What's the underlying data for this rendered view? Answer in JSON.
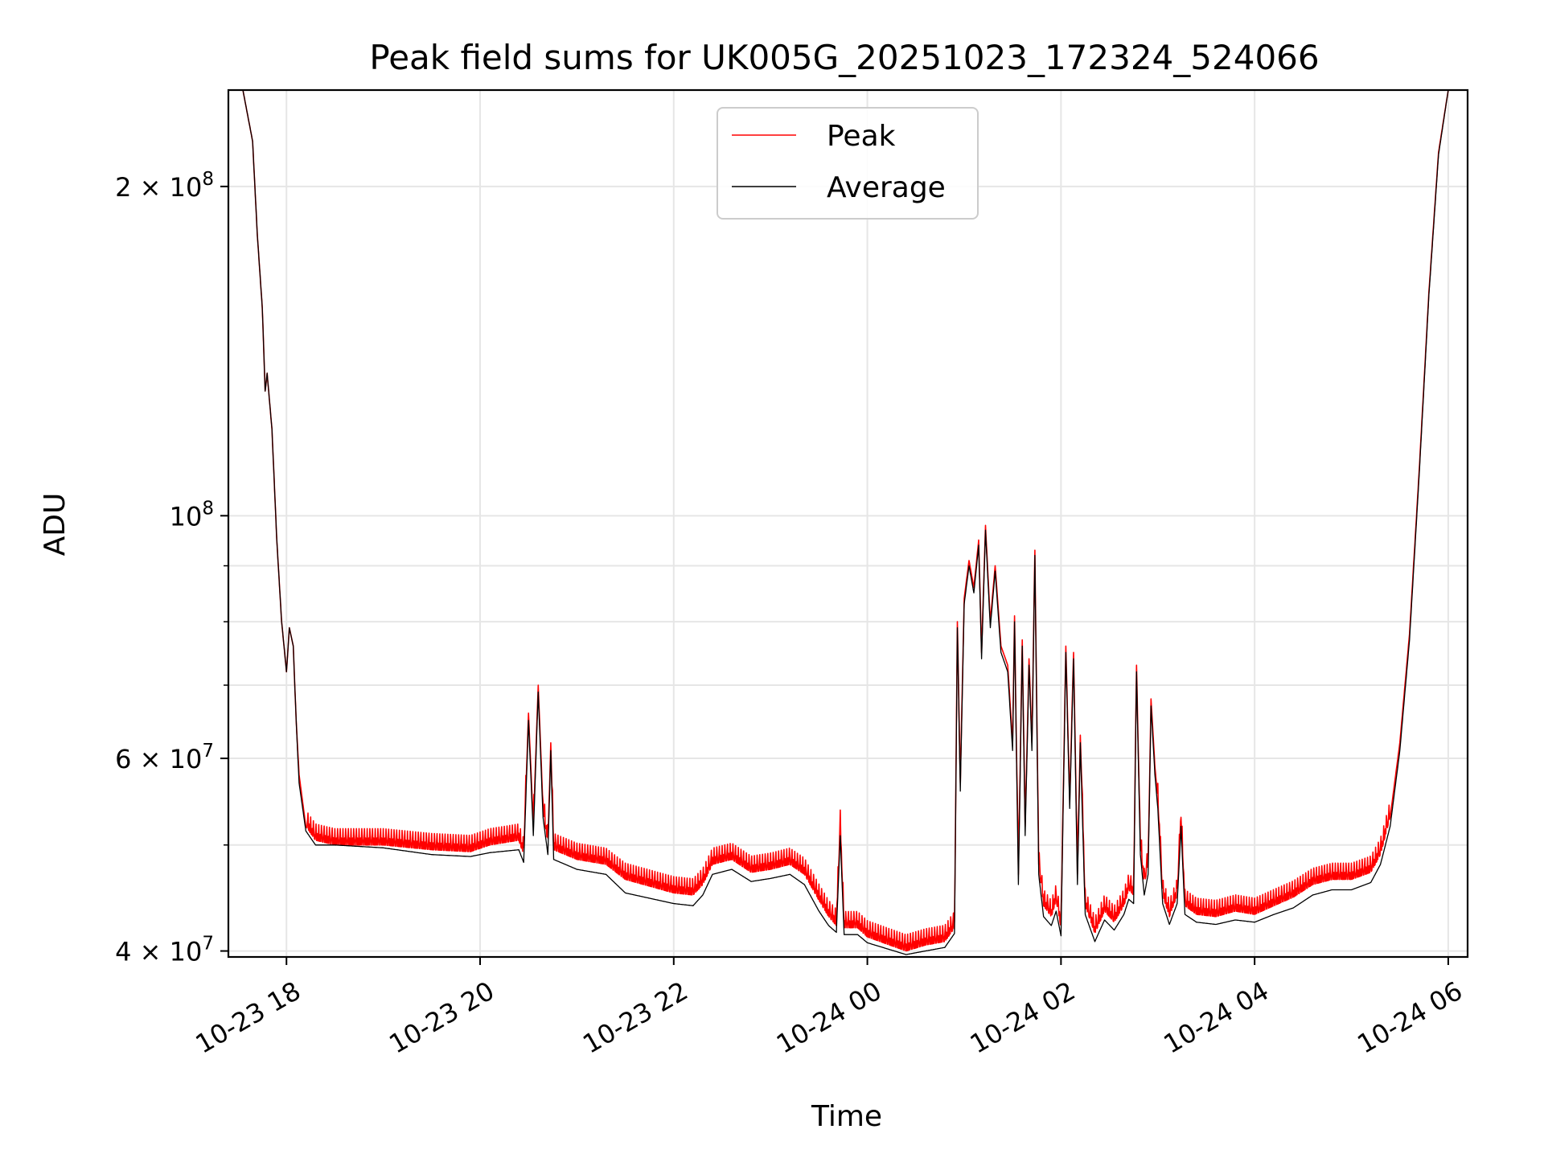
{
  "chart_data": {
    "type": "line",
    "title": "Peak field sums for UK005G_20251023_172324_524066",
    "xlabel": "Time",
    "ylabel": "ADU",
    "yscale": "log",
    "ylim": [
      39500000,
      245000000
    ],
    "xlim_hours": [
      -0.6,
      12.2
    ],
    "grid": true,
    "legend_position": "upper center",
    "x_ticks": [
      {
        "hour": 0,
        "label": "10-23 18"
      },
      {
        "hour": 2,
        "label": "10-23 20"
      },
      {
        "hour": 4,
        "label": "10-23 22"
      },
      {
        "hour": 6,
        "label": "10-24 00"
      },
      {
        "hour": 8,
        "label": "10-24 02"
      },
      {
        "hour": 10,
        "label": "10-24 04"
      },
      {
        "hour": 12,
        "label": "10-24 06"
      }
    ],
    "y_major_ticks": [
      {
        "value": 40000000,
        "mantissa": "4",
        "exponent": "7"
      },
      {
        "value": 60000000,
        "mantissa": "6",
        "exponent": "7"
      },
      {
        "value": 100000000,
        "mantissa": "",
        "exponent": "8"
      },
      {
        "value": 200000000,
        "mantissa": "2",
        "exponent": "8"
      }
    ],
    "y_minor_ticks": [
      50000000,
      70000000,
      80000000,
      90000000
    ],
    "series": [
      {
        "name": "Peak",
        "color": "#ff0000",
        "noise": "ripple",
        "values": [
          [
            -0.6,
            245000000
          ],
          [
            -0.45,
            245000000
          ],
          [
            -0.35,
            220000000
          ],
          [
            -0.3,
            180000000
          ],
          [
            -0.25,
            155000000
          ],
          [
            -0.22,
            130000000
          ],
          [
            -0.2,
            135000000
          ],
          [
            -0.15,
            120000000
          ],
          [
            -0.1,
            95000000
          ],
          [
            -0.05,
            80000000
          ],
          [
            0.0,
            72000000
          ],
          [
            0.03,
            79000000
          ],
          [
            0.07,
            76000000
          ],
          [
            0.1,
            65000000
          ],
          [
            0.13,
            58000000
          ],
          [
            0.2,
            52000000
          ],
          [
            0.3,
            50500000
          ],
          [
            0.5,
            50000000
          ],
          [
            1.0,
            50000000
          ],
          [
            1.5,
            49500000
          ],
          [
            1.9,
            49300000
          ],
          [
            2.1,
            50000000
          ],
          [
            2.4,
            50500000
          ],
          [
            2.45,
            49000000
          ],
          [
            2.5,
            66000000
          ],
          [
            2.55,
            52000000
          ],
          [
            2.6,
            70000000
          ],
          [
            2.65,
            54000000
          ],
          [
            2.7,
            50000000
          ],
          [
            2.73,
            62000000
          ],
          [
            2.76,
            49500000
          ],
          [
            3.0,
            48500000
          ],
          [
            3.3,
            48000000
          ],
          [
            3.5,
            46500000
          ],
          [
            4.0,
            45200000
          ],
          [
            4.2,
            45000000
          ],
          [
            4.3,
            46000000
          ],
          [
            4.4,
            48000000
          ],
          [
            4.6,
            48500000
          ],
          [
            4.8,
            47200000
          ],
          [
            5.0,
            47500000
          ],
          [
            5.2,
            48000000
          ],
          [
            5.35,
            47000000
          ],
          [
            5.5,
            44500000
          ],
          [
            5.6,
            43000000
          ],
          [
            5.68,
            42200000
          ],
          [
            5.72,
            52000000
          ],
          [
            5.76,
            42000000
          ],
          [
            5.9,
            42000000
          ],
          [
            6.0,
            41200000
          ],
          [
            6.4,
            40000000
          ],
          [
            6.6,
            40500000
          ],
          [
            6.8,
            40800000
          ],
          [
            6.9,
            42000000
          ],
          [
            6.93,
            80000000
          ],
          [
            6.96,
            57000000
          ],
          [
            7.0,
            84000000
          ],
          [
            7.05,
            91000000
          ],
          [
            7.1,
            86000000
          ],
          [
            7.15,
            95000000
          ],
          [
            7.18,
            75000000
          ],
          [
            7.22,
            98000000
          ],
          [
            7.27,
            80000000
          ],
          [
            7.32,
            90000000
          ],
          [
            7.38,
            76000000
          ],
          [
            7.45,
            73000000
          ],
          [
            7.5,
            62000000
          ],
          [
            7.52,
            81000000
          ],
          [
            7.56,
            47000000
          ],
          [
            7.6,
            77000000
          ],
          [
            7.63,
            52000000
          ],
          [
            7.67,
            74000000
          ],
          [
            7.7,
            62000000
          ],
          [
            7.73,
            93000000
          ],
          [
            7.77,
            48000000
          ],
          [
            7.82,
            44000000
          ],
          [
            7.9,
            43000000
          ],
          [
            7.95,
            44500000
          ],
          [
            8.0,
            42000000
          ],
          [
            8.05,
            76000000
          ],
          [
            8.09,
            55000000
          ],
          [
            8.13,
            75000000
          ],
          [
            8.17,
            47000000
          ],
          [
            8.2,
            63000000
          ],
          [
            8.25,
            44000000
          ],
          [
            8.35,
            41500000
          ],
          [
            8.45,
            43500000
          ],
          [
            8.55,
            42500000
          ],
          [
            8.65,
            44000000
          ],
          [
            8.7,
            45500000
          ],
          [
            8.75,
            45000000
          ],
          [
            8.78,
            73000000
          ],
          [
            8.82,
            50000000
          ],
          [
            8.86,
            46000000
          ],
          [
            8.9,
            48000000
          ],
          [
            8.93,
            68000000
          ],
          [
            8.97,
            59000000
          ],
          [
            9.0,
            55000000
          ],
          [
            9.05,
            45000000
          ],
          [
            9.12,
            43000000
          ],
          [
            9.2,
            45000000
          ],
          [
            9.24,
            53000000
          ],
          [
            9.28,
            44000000
          ],
          [
            9.4,
            43200000
          ],
          [
            9.6,
            43000000
          ],
          [
            9.8,
            43500000
          ],
          [
            10.0,
            43200000
          ],
          [
            10.2,
            44000000
          ],
          [
            10.4,
            44800000
          ],
          [
            10.6,
            46000000
          ],
          [
            10.8,
            46500000
          ],
          [
            11.0,
            46500000
          ],
          [
            11.2,
            47200000
          ],
          [
            11.3,
            49000000
          ],
          [
            11.4,
            53000000
          ],
          [
            11.5,
            62000000
          ],
          [
            11.6,
            78000000
          ],
          [
            11.7,
            110000000
          ],
          [
            11.8,
            160000000
          ],
          [
            11.9,
            215000000
          ],
          [
            12.0,
            245000000
          ],
          [
            12.2,
            245000000
          ]
        ]
      },
      {
        "name": "Average",
        "color": "#000000",
        "noise": "none",
        "values": [
          [
            -0.6,
            245000000
          ],
          [
            -0.45,
            245000000
          ],
          [
            -0.35,
            220000000
          ],
          [
            -0.3,
            180000000
          ],
          [
            -0.25,
            155000000
          ],
          [
            -0.22,
            130000000
          ],
          [
            -0.2,
            135000000
          ],
          [
            -0.15,
            120000000
          ],
          [
            -0.1,
            95000000
          ],
          [
            -0.05,
            80000000
          ],
          [
            0.0,
            72000000
          ],
          [
            0.03,
            79000000
          ],
          [
            0.07,
            76000000
          ],
          [
            0.1,
            65000000
          ],
          [
            0.13,
            57000000
          ],
          [
            0.2,
            51500000
          ],
          [
            0.3,
            50000000
          ],
          [
            0.5,
            50000000
          ],
          [
            1.0,
            49700000
          ],
          [
            1.5,
            49000000
          ],
          [
            1.9,
            48800000
          ],
          [
            2.1,
            49200000
          ],
          [
            2.4,
            49500000
          ],
          [
            2.45,
            48200000
          ],
          [
            2.5,
            65000000
          ],
          [
            2.55,
            51000000
          ],
          [
            2.6,
            69000000
          ],
          [
            2.65,
            53000000
          ],
          [
            2.7,
            49000000
          ],
          [
            2.73,
            61000000
          ],
          [
            2.76,
            48500000
          ],
          [
            3.0,
            47500000
          ],
          [
            3.3,
            47000000
          ],
          [
            3.5,
            45200000
          ],
          [
            4.0,
            44200000
          ],
          [
            4.2,
            44000000
          ],
          [
            4.3,
            45000000
          ],
          [
            4.4,
            47000000
          ],
          [
            4.6,
            47500000
          ],
          [
            4.8,
            46300000
          ],
          [
            5.0,
            46600000
          ],
          [
            5.2,
            47000000
          ],
          [
            5.35,
            46000000
          ],
          [
            5.5,
            43500000
          ],
          [
            5.6,
            42200000
          ],
          [
            5.68,
            41600000
          ],
          [
            5.72,
            51000000
          ],
          [
            5.76,
            41400000
          ],
          [
            5.9,
            41400000
          ],
          [
            6.0,
            40700000
          ],
          [
            6.4,
            39700000
          ],
          [
            6.6,
            40000000
          ],
          [
            6.8,
            40300000
          ],
          [
            6.9,
            41500000
          ],
          [
            6.93,
            79000000
          ],
          [
            6.96,
            56000000
          ],
          [
            7.0,
            83000000
          ],
          [
            7.05,
            90000000
          ],
          [
            7.1,
            85000000
          ],
          [
            7.15,
            94000000
          ],
          [
            7.18,
            74000000
          ],
          [
            7.22,
            97000000
          ],
          [
            7.27,
            79000000
          ],
          [
            7.32,
            89000000
          ],
          [
            7.38,
            75000000
          ],
          [
            7.45,
            72000000
          ],
          [
            7.5,
            61000000
          ],
          [
            7.52,
            80000000
          ],
          [
            7.56,
            46000000
          ],
          [
            7.6,
            76000000
          ],
          [
            7.63,
            51000000
          ],
          [
            7.67,
            73000000
          ],
          [
            7.7,
            61000000
          ],
          [
            7.73,
            92000000
          ],
          [
            7.77,
            47000000
          ],
          [
            7.82,
            43000000
          ],
          [
            7.9,
            42200000
          ],
          [
            7.95,
            43500000
          ],
          [
            8.0,
            41300000
          ],
          [
            8.05,
            75000000
          ],
          [
            8.09,
            54000000
          ],
          [
            8.13,
            74000000
          ],
          [
            8.17,
            46000000
          ],
          [
            8.2,
            62000000
          ],
          [
            8.25,
            43200000
          ],
          [
            8.35,
            40800000
          ],
          [
            8.45,
            42700000
          ],
          [
            8.55,
            41800000
          ],
          [
            8.65,
            43200000
          ],
          [
            8.7,
            44600000
          ],
          [
            8.75,
            44200000
          ],
          [
            8.78,
            72000000
          ],
          [
            8.82,
            49000000
          ],
          [
            8.86,
            45000000
          ],
          [
            8.9,
            47000000
          ],
          [
            8.93,
            67000000
          ],
          [
            8.97,
            58000000
          ],
          [
            9.0,
            54000000
          ],
          [
            9.05,
            44200000
          ],
          [
            9.12,
            42300000
          ],
          [
            9.2,
            44200000
          ],
          [
            9.24,
            52000000
          ],
          [
            9.28,
            43200000
          ],
          [
            9.4,
            42500000
          ],
          [
            9.6,
            42300000
          ],
          [
            9.8,
            42700000
          ],
          [
            10.0,
            42500000
          ],
          [
            10.2,
            43200000
          ],
          [
            10.4,
            43800000
          ],
          [
            10.6,
            45000000
          ],
          [
            10.8,
            45500000
          ],
          [
            11.0,
            45500000
          ],
          [
            11.2,
            46200000
          ],
          [
            11.3,
            48000000
          ],
          [
            11.4,
            52000000
          ],
          [
            11.5,
            61000000
          ],
          [
            11.6,
            77000000
          ],
          [
            11.7,
            109000000
          ],
          [
            11.8,
            159000000
          ],
          [
            11.9,
            214000000
          ],
          [
            12.0,
            245000000
          ],
          [
            12.2,
            245000000
          ]
        ]
      }
    ]
  }
}
